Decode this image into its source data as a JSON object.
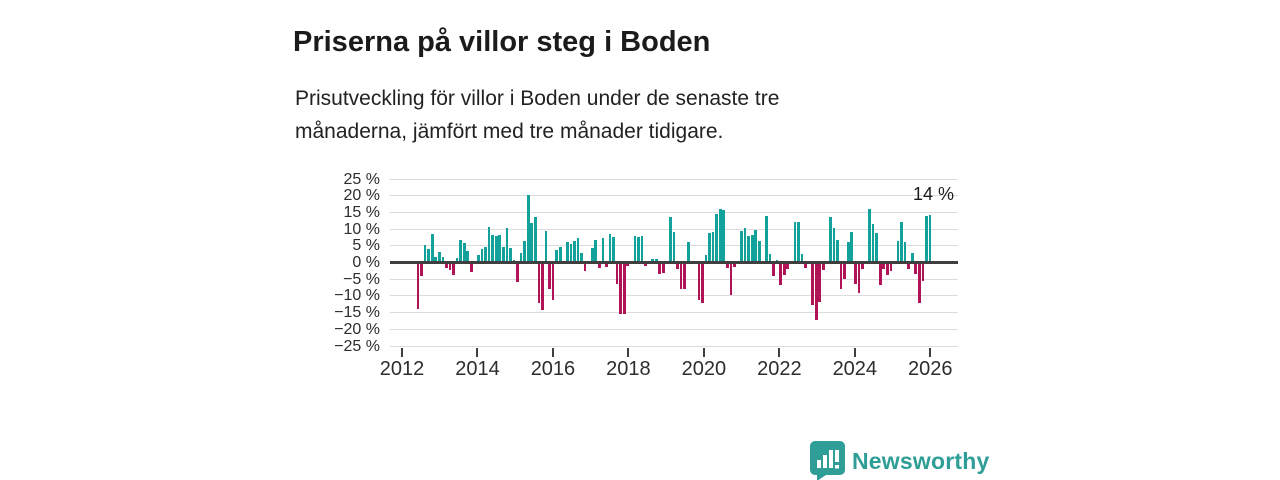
{
  "header": {
    "title": "Priserna på villor steg i Boden",
    "subtitle_lines": [
      "Prisutveckling för villor i Boden under de senaste tre",
      "månaderna, jämfört med tre månader tidigare."
    ]
  },
  "chart": {
    "y_ticks": [
      "25 %",
      "20 %",
      "15 %",
      "10 %",
      "5 %",
      "0 %",
      "−5 %",
      "−10 %",
      "−15 %",
      "−20 %",
      "−25 %"
    ],
    "x_ticks": [
      "2012",
      "2014",
      "2016",
      "2018",
      "2020",
      "2022",
      "2024",
      "2026"
    ]
  },
  "chart_data": {
    "type": "bar",
    "title": "Priserna på villor steg i Boden",
    "subtitle": "Prisutveckling för villor i Boden under de senaste tre månaderna, jämfört med tre månader tidigare.",
    "unit": "%",
    "ylim": [
      -25,
      25
    ],
    "xlim_years": [
      2012,
      2026
    ],
    "x_tick_years": [
      2012,
      2014,
      2016,
      2018,
      2020,
      2022,
      2024,
      2026
    ],
    "interval": "monthly",
    "x_span": "mid-2012 to end of 2025",
    "grid": true,
    "legend": "none",
    "annotation": "14 %",
    "last_value_pct": 14,
    "positive_color": "#12a19b",
    "negative_color": "#b01356",
    "values": [
      -13.8,
      -3.9,
      5.2,
      4.1,
      8.4,
      1.5,
      3.2,
      1.7,
      -1.5,
      -2.1,
      -3.8,
      1.4,
      6.7,
      5.7,
      3.5,
      -2.8,
      0.5,
      2.2,
      3.9,
      4.7,
      10.5,
      8.2,
      8,
      8.2,
      4.7,
      10.4,
      4.2,
      0.7,
      -5.8,
      2.7,
      6.4,
      20.2,
      11.7,
      13.7,
      -12,
      -14.3,
      9.5,
      -7.8,
      -11.3,
      3.7,
      4.7,
      0.4,
      6,
      5.4,
      6.4,
      7.2,
      2.7,
      -2.6,
      0.3,
      4.2,
      6.7,
      -1.6,
      7.4,
      -1.3,
      8.4,
      7.7,
      -6.3,
      -15.3,
      -15.5,
      -1,
      0.5,
      8,
      7.7,
      8,
      -1,
      0.5,
      1,
      1,
      -3.3,
      -3,
      0.3,
      13.7,
      9.2,
      -2,
      -7.8,
      -8,
      6,
      0.4,
      -0.5,
      -11.3,
      -12,
      2.2,
      8.7,
      9,
      14.4,
      16,
      15.7,
      -1.6,
      -9.8,
      -1.3,
      0.4,
      9.4,
      10.2,
      8,
      8.2,
      9.7,
      6.4,
      0.4,
      14,
      2.4,
      -4,
      0.7,
      -6.8,
      -3.6,
      -2,
      0.4,
      12,
      12,
      2.5,
      -1.5,
      -0.5,
      -12.8,
      -17.3,
      -11.8,
      -2.3,
      0.4,
      13.7,
      10.4,
      6.7,
      -8,
      -5,
      6,
      9,
      -6.3,
      -9,
      -2,
      0.3,
      16,
      11.4,
      8.7,
      -6.6,
      -2,
      -3.8,
      -2.6,
      0.3,
      6.4,
      12.2,
      6,
      -1.8,
      2.7,
      -3.3,
      -12.1,
      -5.5,
      13.9,
      14.2
    ]
  },
  "footer": {
    "brand": "Newsworthy",
    "brand_color": "#2f9e97",
    "logo_icon": "bar-chart-speech-bubble-icon"
  }
}
